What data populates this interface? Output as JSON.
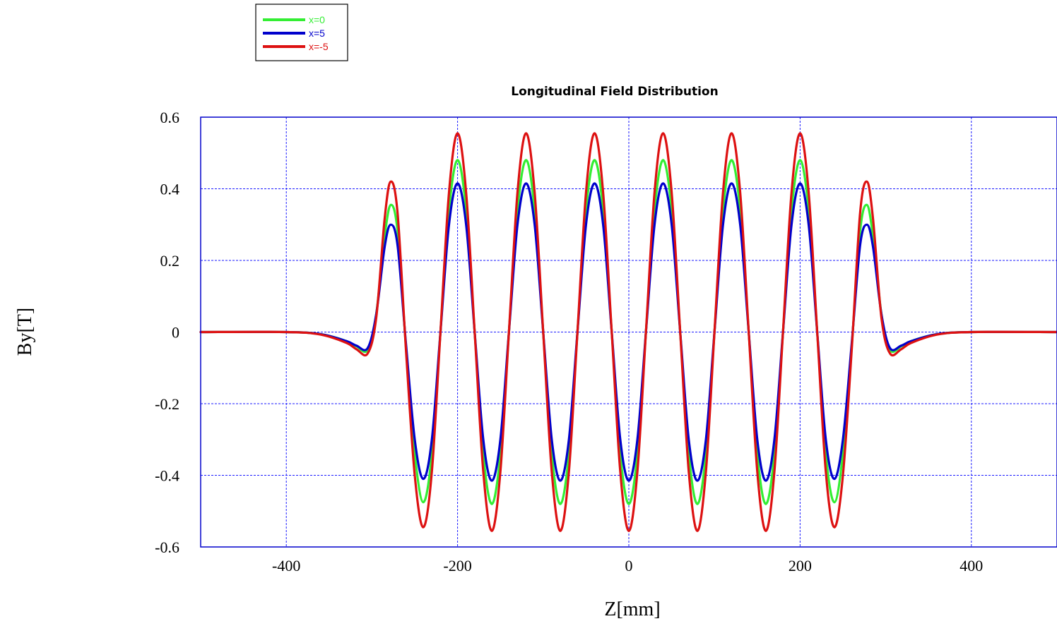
{
  "chart_data": {
    "type": "line",
    "title": "Longitudinal Field Distribution",
    "xlabel": "Z[mm]",
    "ylabel": "By[T]",
    "xlim": [
      -500,
      500
    ],
    "ylim": [
      -0.6,
      0.6
    ],
    "xticks": [
      -400,
      -200,
      0,
      200,
      400
    ],
    "xtick_labels": [
      "-400",
      "-200",
      "0",
      "200",
      "400"
    ],
    "yticks": [
      0.6,
      0.4,
      0.2,
      0,
      -0.2,
      -0.4,
      -0.6
    ],
    "ytick_labels": [
      "0.6",
      "0.4",
      "0.2",
      "0",
      "-0.2",
      "-0.4",
      "-0.6"
    ],
    "grid": true,
    "legend_position": "top-left, above plot",
    "series": [
      {
        "name": "x=0",
        "color": "#33ee33",
        "x": [
          -500,
          -400,
          -360,
          -330,
          -318,
          -305,
          -295,
          -285,
          -278,
          -270,
          -260,
          -250,
          -240,
          -230,
          -220,
          -210,
          -200,
          -190,
          -180,
          -170,
          -160,
          -150,
          -140,
          -130,
          -120,
          -110,
          -100,
          -90,
          -80,
          -70,
          -60,
          -50,
          -40,
          -30,
          -20,
          -10,
          0,
          10,
          20,
          30,
          40,
          50,
          60,
          70,
          80,
          90,
          100,
          110,
          120,
          130,
          140,
          150,
          160,
          170,
          180,
          190,
          200,
          210,
          220,
          230,
          240,
          250,
          260,
          270,
          278,
          285,
          295,
          305,
          318,
          330,
          360,
          400,
          500
        ],
        "y": [
          0,
          0,
          -0.006,
          -0.025,
          -0.04,
          -0.05,
          0.05,
          0.27,
          0.355,
          0.28,
          -0.05,
          -0.34,
          -0.475,
          -0.34,
          0,
          0.34,
          0.48,
          0.34,
          0,
          -0.34,
          -0.48,
          -0.34,
          0,
          0.34,
          0.48,
          0.34,
          0,
          -0.34,
          -0.48,
          -0.34,
          0,
          0.34,
          0.48,
          0.34,
          0,
          -0.34,
          -0.48,
          -0.34,
          0,
          0.34,
          0.48,
          0.34,
          0,
          -0.34,
          -0.48,
          -0.34,
          0,
          0.34,
          0.48,
          0.34,
          0,
          -0.34,
          -0.48,
          -0.34,
          0,
          0.34,
          0.48,
          0.34,
          0,
          -0.34,
          -0.475,
          -0.34,
          -0.05,
          0.28,
          0.355,
          0.27,
          0.05,
          -0.05,
          -0.04,
          -0.025,
          -0.006,
          0,
          0
        ]
      },
      {
        "name": "x=5",
        "color": "#0000cc",
        "x": [
          -500,
          -400,
          -360,
          -330,
          -318,
          -305,
          -295,
          -285,
          -278,
          -270,
          -260,
          -250,
          -240,
          -230,
          -220,
          -210,
          -200,
          -190,
          -180,
          -170,
          -160,
          -150,
          -140,
          -130,
          -120,
          -110,
          -100,
          -90,
          -80,
          -70,
          -60,
          -50,
          -40,
          -30,
          -20,
          -10,
          0,
          10,
          20,
          30,
          40,
          50,
          60,
          70,
          80,
          90,
          100,
          110,
          120,
          130,
          140,
          150,
          160,
          170,
          180,
          190,
          200,
          210,
          220,
          230,
          240,
          250,
          260,
          270,
          278,
          285,
          295,
          305,
          318,
          330,
          360,
          400,
          500
        ],
        "y": [
          0,
          0,
          -0.006,
          -0.025,
          -0.038,
          -0.045,
          0.05,
          0.24,
          0.3,
          0.24,
          -0.04,
          -0.3,
          -0.41,
          -0.3,
          0,
          0.3,
          0.415,
          0.3,
          0,
          -0.3,
          -0.415,
          -0.3,
          0,
          0.3,
          0.415,
          0.3,
          0,
          -0.3,
          -0.415,
          -0.3,
          0,
          0.3,
          0.415,
          0.3,
          0,
          -0.3,
          -0.415,
          -0.3,
          0,
          0.3,
          0.415,
          0.3,
          0,
          -0.3,
          -0.415,
          -0.3,
          0,
          0.3,
          0.415,
          0.3,
          0,
          -0.3,
          -0.415,
          -0.3,
          0,
          0.3,
          0.415,
          0.3,
          0,
          -0.3,
          -0.41,
          -0.3,
          -0.04,
          0.24,
          0.3,
          0.24,
          0.05,
          -0.045,
          -0.038,
          -0.025,
          -0.006,
          0,
          0
        ]
      },
      {
        "name": "x=-5",
        "color": "#dd1111",
        "x": [
          -500,
          -400,
          -360,
          -330,
          -318,
          -305,
          -295,
          -285,
          -278,
          -270,
          -260,
          -250,
          -240,
          -230,
          -220,
          -210,
          -200,
          -190,
          -180,
          -170,
          -160,
          -150,
          -140,
          -130,
          -120,
          -110,
          -100,
          -90,
          -80,
          -70,
          -60,
          -50,
          -40,
          -30,
          -20,
          -10,
          0,
          10,
          20,
          30,
          40,
          50,
          60,
          70,
          80,
          90,
          100,
          110,
          120,
          130,
          140,
          150,
          160,
          170,
          180,
          190,
          200,
          210,
          220,
          230,
          240,
          250,
          260,
          270,
          278,
          285,
          295,
          305,
          318,
          330,
          360,
          400,
          500
        ],
        "y": [
          0,
          0,
          -0.007,
          -0.03,
          -0.048,
          -0.06,
          0.04,
          0.32,
          0.42,
          0.33,
          -0.06,
          -0.4,
          -0.545,
          -0.39,
          0,
          0.39,
          0.555,
          0.39,
          0,
          -0.39,
          -0.555,
          -0.39,
          0,
          0.39,
          0.555,
          0.39,
          0,
          -0.39,
          -0.555,
          -0.39,
          0,
          0.39,
          0.555,
          0.39,
          0,
          -0.39,
          -0.555,
          -0.39,
          0,
          0.39,
          0.555,
          0.39,
          0,
          -0.39,
          -0.555,
          -0.39,
          0,
          0.39,
          0.555,
          0.39,
          0,
          -0.39,
          -0.555,
          -0.39,
          0,
          0.39,
          0.555,
          0.39,
          0,
          -0.39,
          -0.545,
          -0.4,
          -0.06,
          0.33,
          0.42,
          0.32,
          0.04,
          -0.06,
          -0.048,
          -0.03,
          -0.007,
          0,
          0
        ]
      }
    ]
  }
}
